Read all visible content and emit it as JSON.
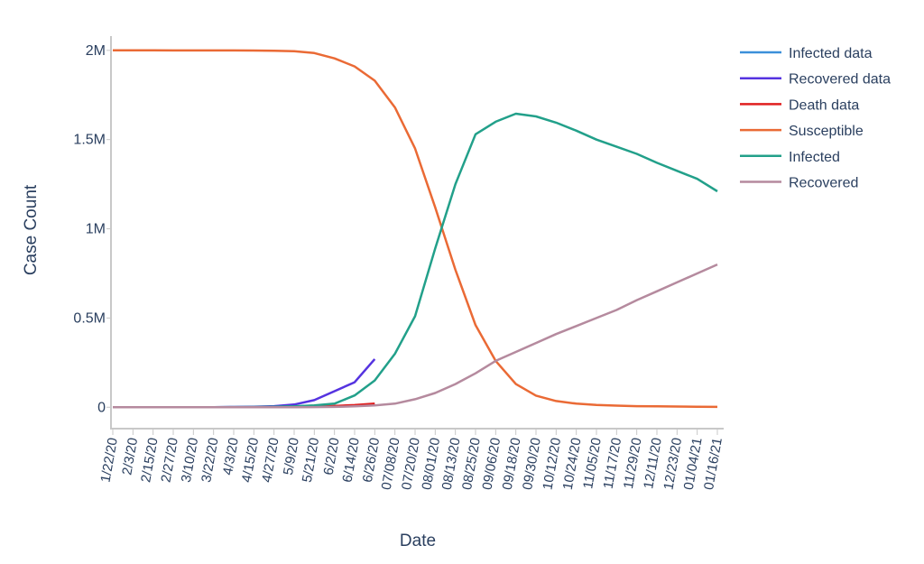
{
  "chart_data": {
    "type": "line",
    "x_label": "Date",
    "y_label": "Case Count",
    "categories": [
      "1/22/20",
      "2/3/20",
      "2/15/20",
      "2/27/20",
      "3/10/20",
      "3/22/20",
      "4/3/20",
      "4/15/20",
      "4/27/20",
      "5/9/20",
      "5/21/20",
      "6/2/20",
      "6/14/20",
      "6/26/20",
      "07/08/20",
      "07/20/20",
      "08/01/20",
      "08/13/20",
      "08/25/20",
      "09/06/20",
      "09/18/20",
      "09/30/20",
      "10/12/20",
      "10/24/20",
      "11/05/20",
      "11/17/20",
      "11/29/20",
      "12/11/20",
      "12/23/20",
      "01/04/21",
      "01/16/21"
    ],
    "ylim": [
      -120000,
      2080000
    ],
    "yticks": [
      0,
      {
        "value": 500000,
        "label": "0.5M"
      },
      {
        "value": 1000000,
        "label": "1M"
      },
      {
        "value": 1500000,
        "label": "1.5M"
      },
      {
        "value": 2000000,
        "label": "2M"
      }
    ],
    "legend": "right",
    "series": [
      {
        "name": "Infected data",
        "color": "#3b8fd9",
        "values": [
          0,
          0,
          0,
          0,
          0,
          100,
          500,
          1000,
          1500,
          2000,
          3000,
          5000,
          8000,
          12000,
          null,
          null,
          null,
          null,
          null,
          null,
          null,
          null,
          null,
          null,
          null,
          null,
          null,
          null,
          null,
          null,
          null
        ]
      },
      {
        "name": "Recovered data",
        "color": "#5533e0",
        "values": [
          0,
          0,
          0,
          0,
          0,
          500,
          1500,
          3000,
          6000,
          15000,
          40000,
          90000,
          140000,
          270000,
          null,
          null,
          null,
          null,
          null,
          null,
          null,
          null,
          null,
          null,
          null,
          null,
          null,
          null,
          null,
          null,
          null
        ]
      },
      {
        "name": "Death data",
        "color": "#e01f1f",
        "values": [
          0,
          0,
          0,
          0,
          0,
          0,
          200,
          500,
          1000,
          2000,
          4000,
          7000,
          12000,
          20000,
          null,
          null,
          null,
          null,
          null,
          null,
          null,
          null,
          null,
          null,
          null,
          null,
          null,
          null,
          null,
          null,
          null
        ]
      },
      {
        "name": "Susceptible",
        "color": "#ea6a35",
        "values": [
          2000000,
          2000000,
          1999900,
          1999800,
          1999700,
          1999600,
          1999400,
          1999000,
          1998000,
          1995000,
          1985000,
          1955000,
          1910000,
          1830000,
          1680000,
          1450000,
          1120000,
          770000,
          460000,
          260000,
          130000,
          65000,
          35000,
          20000,
          13000,
          9000,
          6000,
          5000,
          4000,
          3000,
          2000
        ]
      },
      {
        "name": "Infected",
        "color": "#22a08a",
        "values": [
          0,
          0,
          100,
          200,
          300,
          500,
          800,
          1200,
          3000,
          5000,
          10000,
          20000,
          66000,
          150000,
          300000,
          510000,
          890000,
          1250000,
          1530000,
          1600000,
          1645000,
          1630000,
          1595000,
          1550000,
          1500000,
          1460000,
          1420000,
          1370000,
          1325000,
          1280000,
          1210000
        ]
      },
      {
        "name": "Recovered",
        "color": "#b58a9e",
        "values": [
          0,
          0,
          0,
          0,
          0,
          0,
          0,
          100,
          200,
          500,
          1000,
          2000,
          5000,
          10000,
          20000,
          45000,
          80000,
          130000,
          190000,
          260000,
          310000,
          360000,
          410000,
          455000,
          500000,
          545000,
          600000,
          650000,
          700000,
          750000,
          800000
        ]
      }
    ]
  }
}
